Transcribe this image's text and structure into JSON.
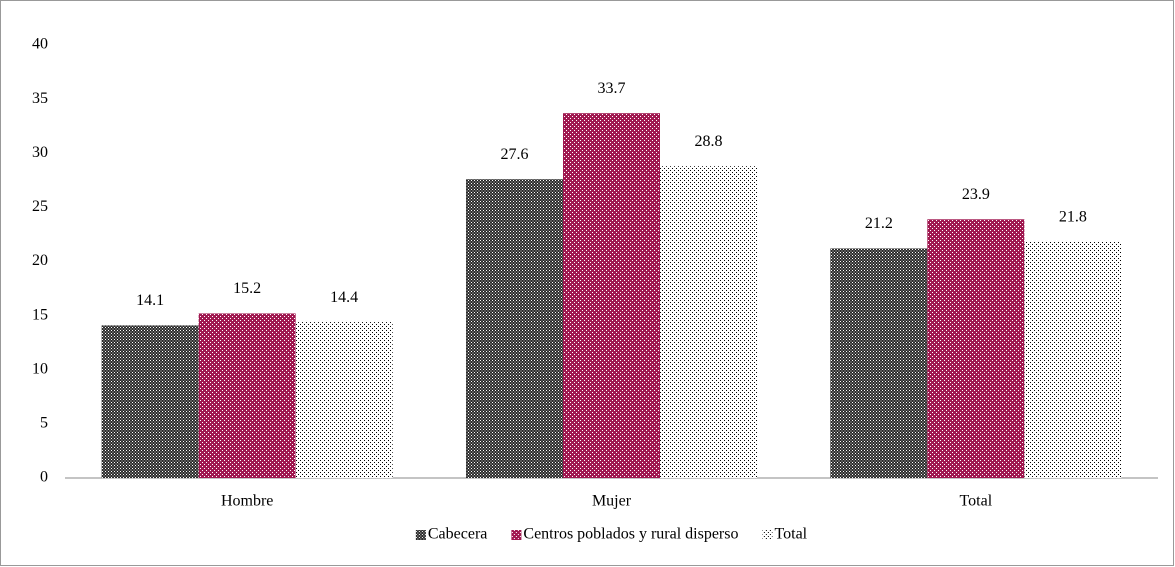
{
  "chart_data": {
    "type": "bar",
    "categories": [
      "Hombre",
      "Mujer",
      "Total"
    ],
    "series": [
      {
        "name": "Cabecera",
        "color": "#2b2b2b",
        "values": [
          14.1,
          27.6,
          21.2
        ]
      },
      {
        "name": "Centros poblados y rural disperso",
        "color": "#a01850",
        "values": [
          15.2,
          33.7,
          23.9
        ]
      },
      {
        "name": "Total",
        "color": "#000000",
        "values": [
          14.4,
          28.8,
          21.8
        ]
      }
    ],
    "ylim": [
      0,
      40
    ],
    "yticks": [
      0,
      5,
      10,
      15,
      20,
      25,
      30,
      35,
      40
    ],
    "grid": false,
    "legend": "bottom"
  }
}
